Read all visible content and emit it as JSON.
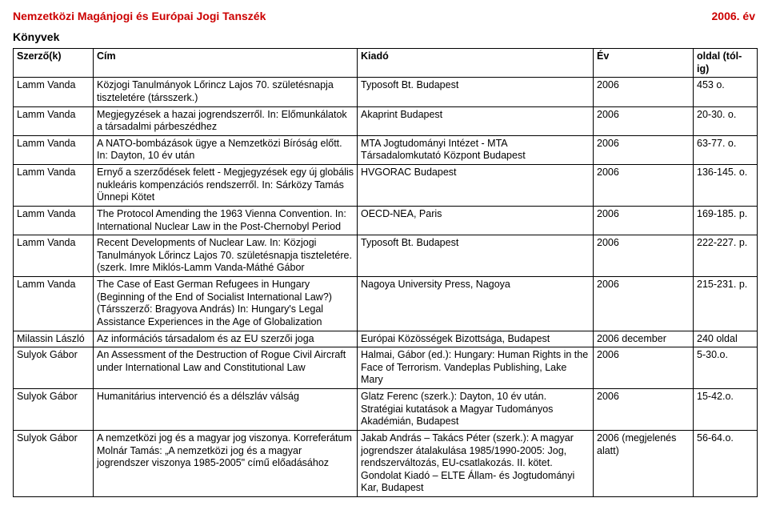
{
  "header": {
    "left": "Nemzetközi Magánjogi és Európai Jogi Tanszék",
    "right": "2006. év",
    "color": "#cc0000"
  },
  "section_title": "Könyvek",
  "table": {
    "columns": [
      "Szerző(k)",
      "Cím",
      "Kiadó",
      "Év",
      "oldal (tól-ig)"
    ],
    "rows": [
      [
        "Lamm Vanda",
        "Közjogi Tanulmányok Lőrincz Lajos 70. születésnapja tiszteletére (társszerk.)",
        "Typosoft Bt. Budapest",
        "2006",
        "453 o."
      ],
      [
        "Lamm Vanda",
        "Megjegyzések a hazai jogrendszerről. In: Előmunkálatok a társadalmi párbeszédhez",
        "Akaprint Budapest",
        "2006",
        "20-30. o."
      ],
      [
        "Lamm Vanda",
        "A NATO-bombázások ügye a Nemzetközi Bíróság előtt. In: Dayton, 10 év után",
        "MTA Jogtudományi Intézet - MTA Társadalomkutató Központ Budapest",
        "2006",
        "63-77. o."
      ],
      [
        "Lamm Vanda",
        "Ernyő a szerződések felett - Megjegyzések egy új globális nukleáris kompenzációs rendszerről. In: Sárközy Tamás Ünnepi Kötet",
        "HVGORAC Budapest",
        "2006",
        "136-145. o."
      ],
      [
        "Lamm Vanda",
        "The Protocol Amending the 1963 Vienna Convention. In: International Nuclear Law in the Post-Chernobyl Period",
        "OECD-NEA, Paris",
        "2006",
        "169-185. p."
      ],
      [
        "Lamm Vanda",
        "Recent Developments of Nuclear Law. In: Közjogi Tanulmányok Lőrincz Lajos 70. születésnapja tiszteletére. (szerk. Imre Miklós-Lamm Vanda-Máthé Gábor",
        "Typosoft Bt. Budapest",
        "2006",
        "222-227. p."
      ],
      [
        "Lamm Vanda",
        "The Case of East German Refugees in Hungary (Beginning of the End of Socialist International Law?) (Társszerző: Bragyova András) In: Hungary's Legal Assistance Experiences in the Age of Globalization",
        "Nagoya University Press, Nagoya",
        "2006",
        "215-231. p."
      ],
      [
        "Milassin László",
        "Az információs társadalom és az EU szerzői joga",
        "Európai Közösségek Bizottsága, Budapest",
        "2006 december",
        "240 oldal"
      ],
      [
        "Sulyok Gábor",
        "An Assessment of the Destruction of Rogue Civil Aircraft under International Law and Constitutional Law",
        "Halmai, Gábor (ed.): Hungary: Human Rights in the Face of Terrorism. Vandeplas Publishing, Lake Mary",
        "2006",
        "5-30.o."
      ],
      [
        "Sulyok Gábor",
        "Humanitárius intervenció és a délszláv válság",
        "Glatz Ferenc (szerk.): Dayton, 10 év után. Stratégiai kutatások a Magyar Tudományos Akadémián, Budapest",
        "2006",
        "15-42.o."
      ],
      [
        "Sulyok Gábor",
        "A nemzetközi jog és a magyar jog viszonya. Korreferátum Molnár Tamás: „A nemzetközi jog és a magyar jogrendszer viszonya 1985-2005\" című előadásához",
        "Jakab András – Takács Péter (szerk.): A magyar jogrendszer átalakulása 1985/1990-2005: Jog, rendszerváltozás, EU-csatlakozás. II. kötet. Gondolat Kiadó – ELTE Állam- és Jogtudományi Kar, Budapest",
        "2006 (megjelenés alatt)",
        "56-64.o."
      ]
    ]
  }
}
